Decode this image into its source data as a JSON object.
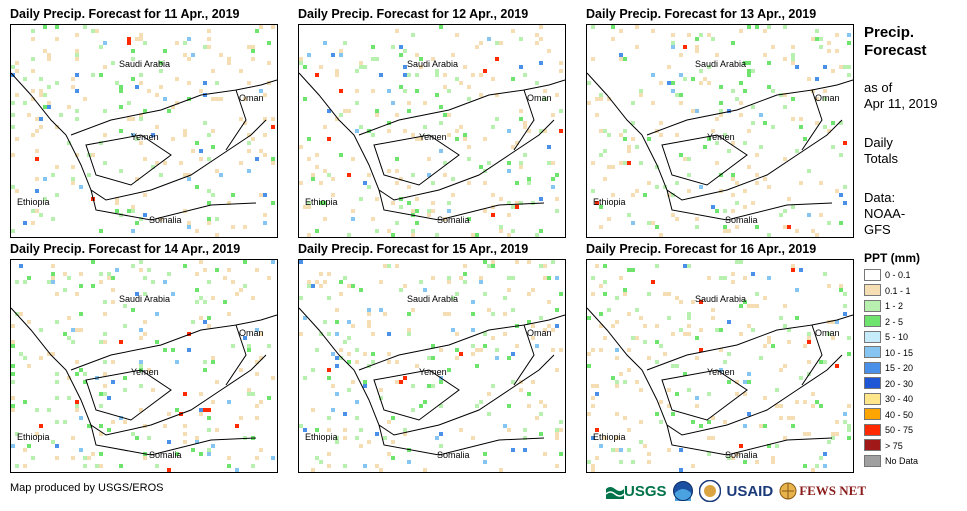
{
  "panels": [
    {
      "title": "Daily Precip. Forecast for 11 Apr., 2019"
    },
    {
      "title": "Daily Precip. Forecast for 12 Apr., 2019"
    },
    {
      "title": "Daily Precip. Forecast for 13 Apr., 2019"
    },
    {
      "title": "Daily Precip. Forecast for 14 Apr., 2019"
    },
    {
      "title": "Daily Precip. Forecast for 15 Apr., 2019"
    },
    {
      "title": "Daily Precip. Forecast for 16 Apr., 2019"
    }
  ],
  "map_labels": {
    "saudi": "Saudi Arabia",
    "oman": "Oman",
    "yemen": "Yemen",
    "ethiopia": "Ethiopia",
    "somalia": "Somalia"
  },
  "side": {
    "title_line1": "Precip.",
    "title_line2": "Forecast",
    "asof_line1": "as of",
    "asof_line2": "Apr 11, 2019",
    "totals_line1": "Daily",
    "totals_line2": "Totals",
    "data_line1": "Data:",
    "data_line2": "NOAA-",
    "data_line3": "GFS"
  },
  "legend": {
    "title": "PPT (mm)",
    "items": [
      {
        "label": "0 - 0.1",
        "color": "#ffffff"
      },
      {
        "label": "0.1 - 1",
        "color": "#f5deb3"
      },
      {
        "label": "1 - 2",
        "color": "#b8f0b0"
      },
      {
        "label": "2 - 5",
        "color": "#6ee36e"
      },
      {
        "label": "5 - 10",
        "color": "#c6ecfb"
      },
      {
        "label": "10 - 15",
        "color": "#86c4f2"
      },
      {
        "label": "15 - 20",
        "color": "#4a90e8"
      },
      {
        "label": "20 - 30",
        "color": "#1f56d6"
      },
      {
        "label": "30 - 40",
        "color": "#ffe68a"
      },
      {
        "label": "40 - 50",
        "color": "#ffa500"
      },
      {
        "label": "50 - 75",
        "color": "#ff2a00"
      },
      {
        "label": "> 75",
        "color": "#a01818"
      },
      {
        "label": "No Data",
        "color": "#a0a0a0"
      }
    ]
  },
  "credit": "Map produced by USGS/EROS",
  "logos": {
    "usgs": "USGS",
    "usaid": "USAID",
    "fews": "FEWS NET"
  }
}
